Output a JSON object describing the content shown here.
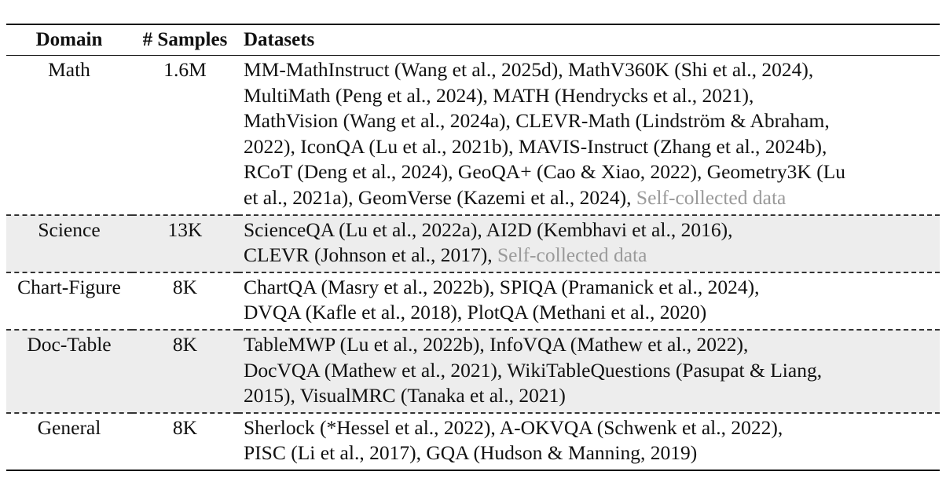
{
  "table": {
    "headers": {
      "domain": "Domain",
      "samples": "# Samples",
      "datasets": "Datasets"
    },
    "rows": [
      {
        "domain": "Math",
        "samples": "1.6M",
        "shaded": false,
        "lines": [
          "MM-MathInstruct (Wang et al., 2025d), MathV360K (Shi et al., 2024),",
          "MultiMath (Peng et al., 2024), MATH (Hendrycks et al., 2021),",
          "MathVision (Wang et al., 2024a), CLEVR-Math (Lindström & Abraham,",
          "2022), IconQA (Lu et al., 2021b), MAVIS-Instruct (Zhang et al., 2024b),",
          "RCoT (Deng et al., 2024), GeoQA+ (Cao & Xiao, 2022), Geometry3K (Lu",
          "et al., 2021a), GeomVerse (Kazemi et al., 2024), "
        ],
        "gray_suffix": "Self-collected data"
      },
      {
        "domain": "Science",
        "samples": "13K",
        "shaded": true,
        "lines": [
          "ScienceQA (Lu et al., 2022a), AI2D (Kembhavi et al., 2016),",
          "CLEVR (Johnson et al., 2017), "
        ],
        "gray_suffix": "Self-collected data"
      },
      {
        "domain": "Chart-Figure",
        "samples": "8K",
        "shaded": false,
        "lines": [
          "ChartQA (Masry et al., 2022b), SPIQA (Pramanick et al., 2024),",
          "DVQA (Kafle et al., 2018), PlotQA (Methani et al., 2020)"
        ],
        "gray_suffix": ""
      },
      {
        "domain": "Doc-Table",
        "samples": "8K",
        "shaded": true,
        "lines": [
          "TableMWP (Lu et al., 2022b), InfoVQA (Mathew et al., 2022),",
          "DocVQA (Mathew et al., 2021), WikiTableQuestions (Pasupat & Liang,",
          "2015), VisualMRC (Tanaka et al., 2021)"
        ],
        "gray_suffix": ""
      },
      {
        "domain": "General",
        "samples": "8K",
        "shaded": false,
        "lines": [
          "Sherlock (*Hessel et al., 2022), A-OKVQA (Schwenk et al., 2022),",
          "PISC (Li et al., 2017), GQA (Hudson & Manning, 2019)"
        ],
        "gray_suffix": ""
      }
    ],
    "colors": {
      "text": "#111111",
      "muted": "#9a9a9a",
      "shade": "#ededed"
    }
  }
}
